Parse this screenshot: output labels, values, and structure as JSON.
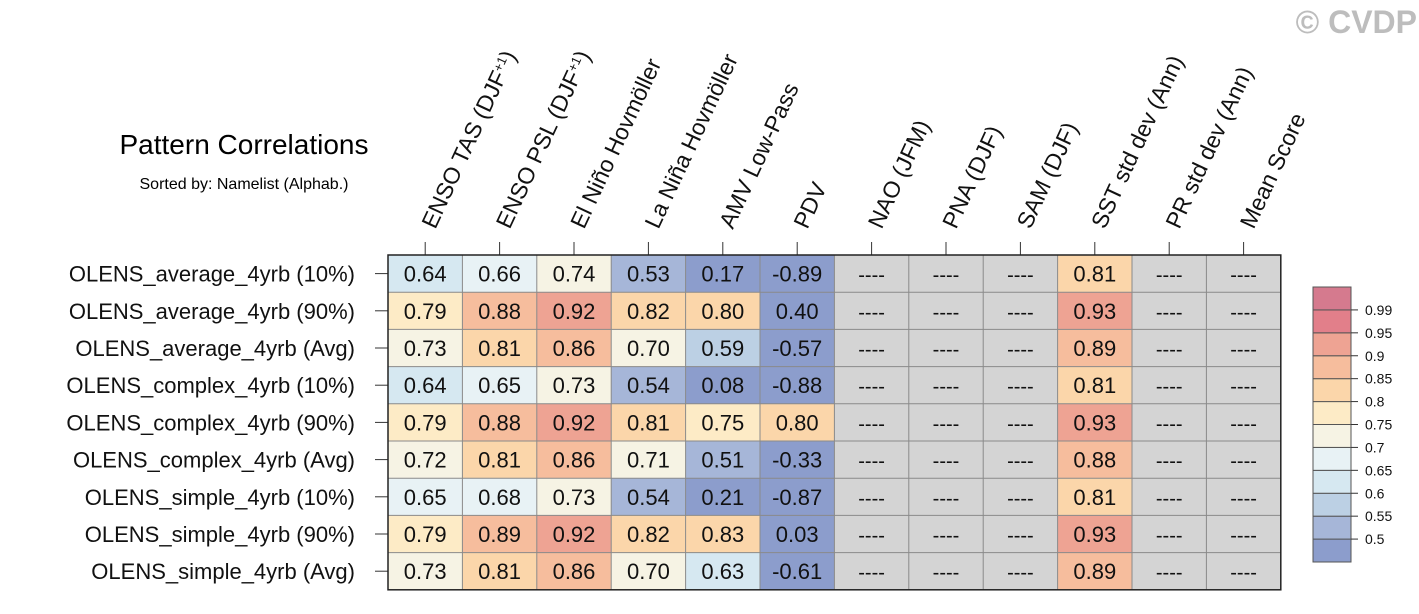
{
  "watermark": "© CVDP",
  "chart_data": {
    "type": "heatmap",
    "title": "Pattern Correlations",
    "subtitle": "Sorted by: Namelist (Alphab.)",
    "columns": [
      "ENSO TAS (DJF+1)",
      "ENSO PSL (DJF+1)",
      "El Niño Hovmöller",
      "La Niña Hovmöller",
      "AMV Low-Pass",
      "PDV",
      "NAO (JFM)",
      "PNA (DJF)",
      "SAM (DJF)",
      "SST std dev (Ann)",
      "PR std dev (Ann)",
      "Mean Score"
    ],
    "rows": [
      "OLENS_average_4yrb (10%)",
      "OLENS_average_4yrb (90%)",
      "OLENS_average_4yrb (Avg)",
      "OLENS_complex_4yrb (10%)",
      "OLENS_complex_4yrb (90%)",
      "OLENS_complex_4yrb (Avg)",
      "OLENS_simple_4yrb (10%)",
      "OLENS_simple_4yrb (90%)",
      "OLENS_simple_4yrb (Avg)"
    ],
    "values": [
      [
        0.64,
        0.66,
        0.74,
        0.53,
        0.17,
        -0.89,
        null,
        null,
        null,
        0.81,
        null,
        null
      ],
      [
        0.79,
        0.88,
        0.92,
        0.82,
        0.8,
        0.4,
        null,
        null,
        null,
        0.93,
        null,
        null
      ],
      [
        0.73,
        0.81,
        0.86,
        0.7,
        0.59,
        -0.57,
        null,
        null,
        null,
        0.89,
        null,
        null
      ],
      [
        0.64,
        0.65,
        0.73,
        0.54,
        0.08,
        -0.88,
        null,
        null,
        null,
        0.81,
        null,
        null
      ],
      [
        0.79,
        0.88,
        0.92,
        0.81,
        0.75,
        0.8,
        null,
        null,
        null,
        0.93,
        null,
        null
      ],
      [
        0.72,
        0.81,
        0.86,
        0.71,
        0.51,
        -0.33,
        null,
        null,
        null,
        0.88,
        null,
        null
      ],
      [
        0.65,
        0.68,
        0.73,
        0.54,
        0.21,
        -0.87,
        null,
        null,
        null,
        0.81,
        null,
        null
      ],
      [
        0.79,
        0.89,
        0.92,
        0.82,
        0.83,
        0.03,
        null,
        null,
        null,
        0.93,
        null,
        null
      ],
      [
        0.73,
        0.81,
        0.86,
        0.7,
        0.63,
        -0.61,
        null,
        null,
        null,
        0.89,
        null,
        null
      ]
    ],
    "missing_label": "----",
    "missing_color": "#d4d4d4",
    "colorbar": {
      "ticks": [
        "0.5",
        "0.55",
        "0.6",
        "0.65",
        "0.7",
        "0.75",
        "0.8",
        "0.85",
        "0.9",
        "0.95",
        "0.99"
      ],
      "colors": [
        "#8c9dcc",
        "#a6b6d8",
        "#bcd0e4",
        "#d6e8f1",
        "#e8f2f5",
        "#f6f3e4",
        "#fdebc6",
        "#fbd6aa",
        "#f6bd9d",
        "#eea393",
        "#e27f8a",
        "#d57a8e"
      ]
    }
  }
}
